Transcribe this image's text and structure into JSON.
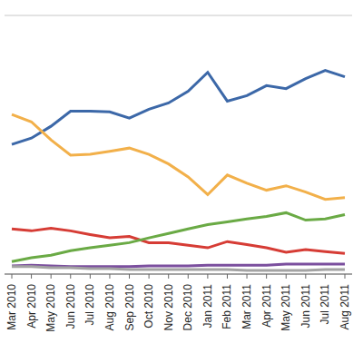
{
  "chart_data": {
    "type": "line",
    "categories": [
      "Mar 2010",
      "Apr 2010",
      "May 2010",
      "Jun 2010",
      "Jul 2010",
      "Aug 2010",
      "Sep 2010",
      "Oct 2010",
      "Nov 2010",
      "Dec 2010",
      "Jan 2011",
      "Feb 2011",
      "Mar 2011",
      "Apr 2011",
      "May 2011",
      "Jun 2011",
      "Jul 2011",
      "Aug 2011"
    ],
    "series": [
      {
        "color": "#3c68a8",
        "values": [
          3.51,
          3.68,
          4.0,
          4.41,
          4.41,
          4.39,
          4.22,
          4.46,
          4.63,
          4.95,
          5.46,
          4.68,
          4.83,
          5.1,
          5.02,
          5.29,
          5.51,
          5.34
        ]
      },
      {
        "color": "#f2b04a",
        "values": [
          4.32,
          4.12,
          3.63,
          3.22,
          3.24,
          3.32,
          3.41,
          3.24,
          2.98,
          2.63,
          2.15,
          2.68,
          2.46,
          2.27,
          2.39,
          2.22,
          2.02,
          2.07
        ]
      },
      {
        "color": "#d63c35",
        "values": [
          1.22,
          1.17,
          1.24,
          1.17,
          1.07,
          0.98,
          1.02,
          0.85,
          0.85,
          0.78,
          0.71,
          0.88,
          0.8,
          0.71,
          0.59,
          0.66,
          0.61,
          0.56
        ]
      },
      {
        "color": "#6aaa45",
        "values": [
          0.34,
          0.44,
          0.51,
          0.63,
          0.71,
          0.78,
          0.85,
          0.98,
          1.1,
          1.22,
          1.34,
          1.41,
          1.49,
          1.56,
          1.66,
          1.46,
          1.49,
          1.61
        ]
      },
      {
        "color": "#7b4f9e",
        "values": [
          0.22,
          0.24,
          0.22,
          0.2,
          0.2,
          0.2,
          0.2,
          0.22,
          0.22,
          0.22,
          0.24,
          0.24,
          0.24,
          0.24,
          0.27,
          0.27,
          0.27,
          0.27
        ]
      },
      {
        "color": "#a3a3a3",
        "values": [
          0.2,
          0.2,
          0.17,
          0.17,
          0.15,
          0.15,
          0.12,
          0.12,
          0.12,
          0.12,
          0.12,
          0.12,
          0.1,
          0.1,
          0.1,
          0.1,
          0.12,
          0.12
        ]
      }
    ],
    "ylim": [
      0,
      7
    ],
    "yticks": [
      0,
      1,
      2,
      3,
      4,
      5,
      6,
      7
    ],
    "grid": true,
    "tick_labels": "x"
  }
}
